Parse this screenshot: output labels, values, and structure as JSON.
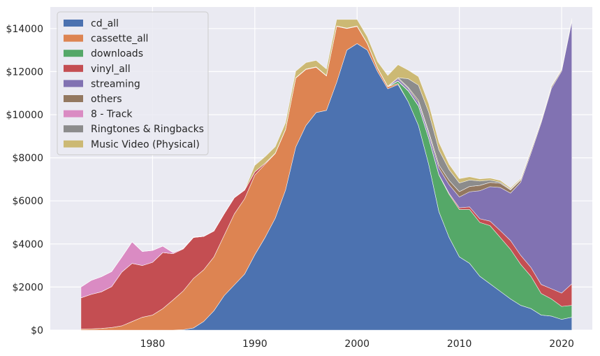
{
  "chart_data": {
    "type": "area",
    "stacked": true,
    "grid": true,
    "legend_placement": "top-left",
    "background": "#eaeaf2",
    "title": "",
    "xlabel": "",
    "ylabel": "",
    "xlim": [
      1970,
      2023
    ],
    "ylim": [
      0,
      15000
    ],
    "x_ticks": [
      1980,
      1990,
      2000,
      2010,
      2020
    ],
    "y_ticks": [
      0,
      2000,
      4000,
      6000,
      8000,
      10000,
      12000,
      14000
    ],
    "x_tick_labels": [
      "1980",
      "1990",
      "2000",
      "2010",
      "2020"
    ],
    "y_tick_labels": [
      "$0",
      "$2000",
      "$4000",
      "$6000",
      "$8000",
      "$10000",
      "$12000",
      "$14000"
    ],
    "x": [
      1973,
      1974,
      1975,
      1976,
      1977,
      1978,
      1979,
      1980,
      1981,
      1982,
      1983,
      1984,
      1985,
      1986,
      1987,
      1988,
      1989,
      1990,
      1991,
      1992,
      1993,
      1994,
      1995,
      1996,
      1997,
      1998,
      1999,
      2000,
      2001,
      2002,
      2003,
      2004,
      2005,
      2006,
      2007,
      2008,
      2009,
      2010,
      2011,
      2012,
      2013,
      2014,
      2015,
      2016,
      2017,
      2018,
      2019,
      2020,
      2021
    ],
    "series": [
      {
        "name": "cd_all",
        "color": "#4c72b0",
        "values": [
          0,
          0,
          0,
          0,
          0,
          0,
          0,
          0,
          0,
          0,
          20,
          100,
          400,
          900,
          1600,
          2100,
          2600,
          3500,
          4300,
          5200,
          6500,
          8500,
          9500,
          10100,
          10200,
          11500,
          13000,
          13300,
          13000,
          12000,
          11200,
          11400,
          10600,
          9500,
          7700,
          5500,
          4300,
          3400,
          3100,
          2500,
          2150,
          1800,
          1450,
          1150,
          1000,
          700,
          650,
          500,
          600
        ]
      },
      {
        "name": "cassette_all",
        "color": "#dd8452",
        "values": [
          50,
          60,
          80,
          120,
          200,
          400,
          600,
          700,
          1000,
          1400,
          1800,
          2300,
          2400,
          2500,
          2800,
          3300,
          3500,
          3700,
          3400,
          3000,
          2800,
          3200,
          2600,
          2100,
          1600,
          2600,
          1000,
          800,
          300,
          150,
          100,
          50,
          0,
          0,
          0,
          0,
          0,
          0,
          0,
          0,
          0,
          0,
          0,
          0,
          0,
          0,
          0,
          0,
          0
        ]
      },
      {
        "name": "downloads",
        "color": "#55a868",
        "values": [
          0,
          0,
          0,
          0,
          0,
          0,
          0,
          0,
          0,
          0,
          0,
          0,
          0,
          0,
          0,
          0,
          0,
          0,
          0,
          0,
          0,
          0,
          0,
          0,
          0,
          0,
          0,
          0,
          0,
          0,
          0,
          100,
          500,
          900,
          1200,
          1700,
          2000,
          2200,
          2500,
          2500,
          2700,
          2500,
          2300,
          1900,
          1500,
          1000,
          800,
          600,
          550
        ]
      },
      {
        "name": "vinyl_all",
        "color": "#c44e52",
        "values": [
          1450,
          1600,
          1700,
          1900,
          2500,
          2700,
          2400,
          2450,
          2600,
          2150,
          1950,
          1900,
          1550,
          1200,
          1000,
          750,
          400,
          150,
          50,
          20,
          20,
          20,
          20,
          20,
          20,
          20,
          20,
          20,
          20,
          20,
          20,
          20,
          20,
          20,
          20,
          20,
          50,
          80,
          120,
          170,
          210,
          320,
          410,
          420,
          410,
          420,
          470,
          620,
          1000
        ]
      },
      {
        "name": "streaming",
        "color": "#8172b2",
        "values": [
          0,
          0,
          0,
          0,
          0,
          0,
          0,
          0,
          0,
          0,
          0,
          0,
          0,
          0,
          0,
          0,
          0,
          0,
          0,
          0,
          0,
          0,
          0,
          0,
          0,
          0,
          0,
          0,
          0,
          0,
          0,
          100,
          100,
          150,
          200,
          300,
          400,
          500,
          700,
          1300,
          1600,
          2000,
          2200,
          3400,
          5300,
          7500,
          9300,
          10300,
          12200
        ]
      },
      {
        "name": "others",
        "color": "#937860",
        "values": [
          0,
          0,
          0,
          0,
          0,
          0,
          0,
          0,
          0,
          0,
          0,
          0,
          0,
          0,
          0,
          0,
          0,
          0,
          0,
          0,
          0,
          0,
          0,
          0,
          0,
          0,
          0,
          0,
          0,
          0,
          0,
          50,
          50,
          100,
          100,
          150,
          200,
          250,
          250,
          250,
          200,
          200,
          150,
          100,
          100,
          80,
          80,
          60,
          60
        ]
      },
      {
        "name": "8 - Track",
        "color": "#da8bc3",
        "values": [
          500,
          650,
          700,
          700,
          700,
          1000,
          650,
          550,
          300,
          50,
          20,
          20,
          0,
          0,
          0,
          0,
          0,
          0,
          0,
          0,
          0,
          0,
          0,
          0,
          0,
          0,
          0,
          0,
          0,
          0,
          0,
          0,
          0,
          0,
          0,
          0,
          0,
          0,
          0,
          0,
          0,
          0,
          0,
          0,
          0,
          0,
          0,
          0,
          0
        ]
      },
      {
        "name": "Ringtones & Ringbacks",
        "color": "#8c8c8c",
        "values": [
          0,
          0,
          0,
          0,
          0,
          0,
          0,
          0,
          0,
          0,
          0,
          0,
          0,
          0,
          0,
          0,
          0,
          0,
          0,
          0,
          0,
          0,
          0,
          0,
          0,
          0,
          0,
          0,
          0,
          0,
          0,
          0,
          400,
          700,
          900,
          700,
          500,
          400,
          300,
          200,
          100,
          50,
          30,
          20,
          20,
          20,
          20,
          20,
          20
        ]
      },
      {
        "name": "Music Video (Physical)",
        "color": "#ccb974",
        "values": [
          0,
          0,
          0,
          0,
          0,
          0,
          0,
          0,
          0,
          0,
          0,
          0,
          0,
          0,
          0,
          0,
          0,
          300,
          300,
          300,
          300,
          300,
          300,
          300,
          300,
          300,
          400,
          300,
          300,
          300,
          500,
          600,
          400,
          400,
          400,
          350,
          250,
          200,
          150,
          100,
          100,
          80,
          60,
          50,
          40,
          30,
          30,
          30,
          40
        ]
      }
    ]
  }
}
